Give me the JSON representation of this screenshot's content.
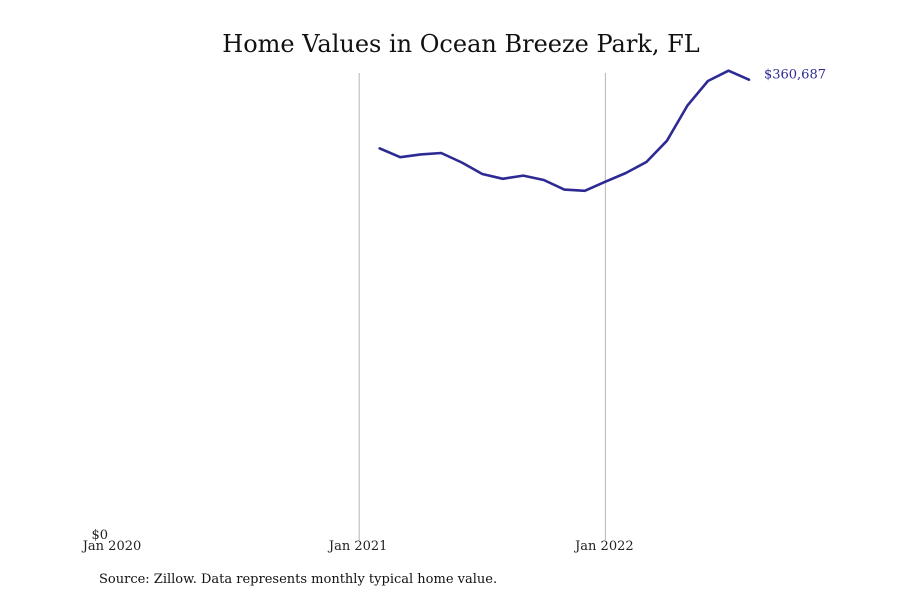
{
  "chart_data": {
    "type": "line",
    "title": "Home Values in Ocean Breeze Park, FL",
    "x_axis": {
      "range": [
        "2020-01",
        "2022-10"
      ],
      "ticks": [
        "2020-01",
        "2021-01",
        "2022-01"
      ],
      "tick_labels": [
        "Jan 2020",
        "Jan 2021",
        "Jan 2022"
      ],
      "gridlines_at": [
        "2021-01",
        "2022-01"
      ]
    },
    "y_axis": {
      "range": [
        0,
        366000
      ],
      "tick_values": [
        0
      ],
      "tick_labels": [
        "$0"
      ]
    },
    "grid": "vertical",
    "series": [
      {
        "color": "#2e2a94",
        "x": [
          "2021-02",
          "2021-03",
          "2021-04",
          "2021-05",
          "2021-06",
          "2021-07",
          "2021-08",
          "2021-09",
          "2021-10",
          "2021-11",
          "2021-12",
          "2022-01",
          "2022-02",
          "2022-03",
          "2022-04",
          "2022-05",
          "2022-06",
          "2022-07",
          "2022-08"
        ],
        "values": [
          305900,
          298900,
          301100,
          302200,
          294600,
          285500,
          281600,
          284200,
          280700,
          273000,
          272100,
          279300,
          286300,
          295000,
          311900,
          340000,
          359600,
          367800,
          360687
        ],
        "end_label": "$360,687"
      }
    ]
  },
  "footer": {
    "source": "Source: Zillow. Data represents monthly typical home value."
  }
}
